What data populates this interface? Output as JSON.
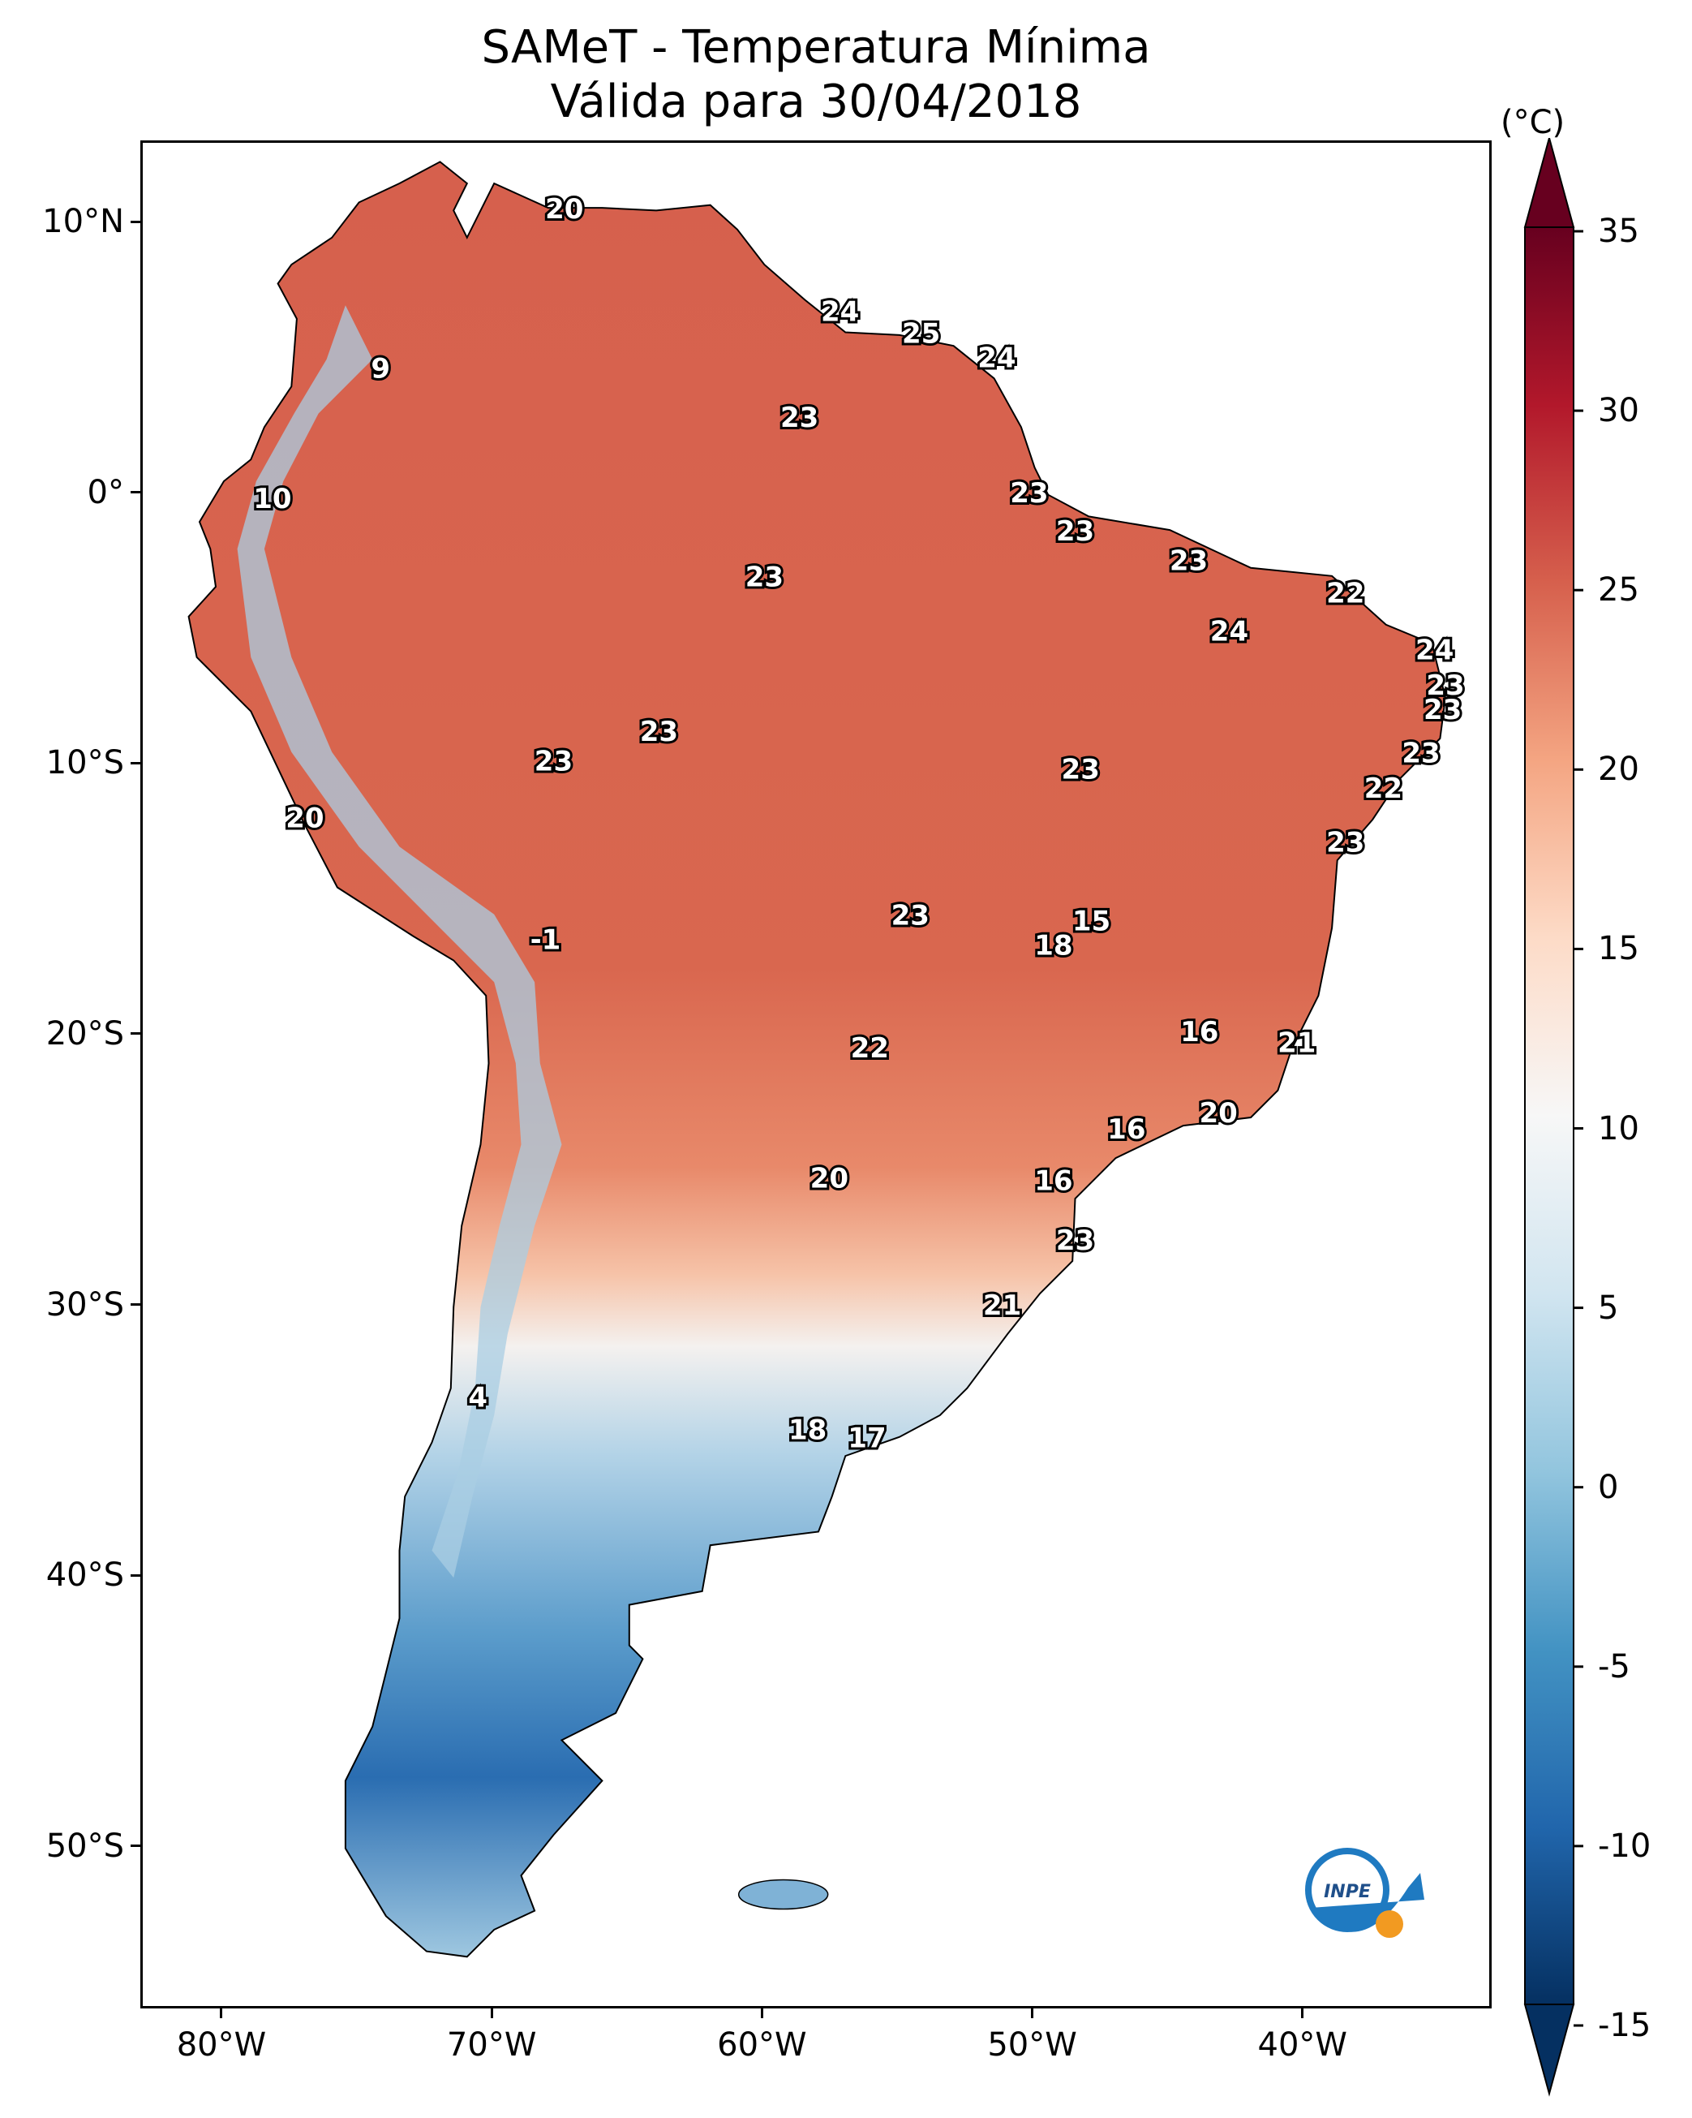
{
  "title": {
    "line1": "SAMeT - Temperatura Mínima",
    "line2": "Válida para 30/04/2018"
  },
  "map": {
    "lon_range": [
      -83,
      -33
    ],
    "lat_range": [
      -56,
      13
    ],
    "lat_ticks": [
      {
        "value": 10,
        "label": "10°N"
      },
      {
        "value": 0,
        "label": "0°"
      },
      {
        "value": -10,
        "label": "10°S"
      },
      {
        "value": -20,
        "label": "20°S"
      },
      {
        "value": -30,
        "label": "30°S"
      },
      {
        "value": -40,
        "label": "40°S"
      },
      {
        "value": -50,
        "label": "50°S"
      }
    ],
    "lon_ticks": [
      {
        "value": -80,
        "label": "80°W"
      },
      {
        "value": -70,
        "label": "70°W"
      },
      {
        "value": -60,
        "label": "60°W"
      },
      {
        "value": -50,
        "label": "50°W"
      },
      {
        "value": -40,
        "label": "40°W"
      }
    ],
    "city_labels": [
      {
        "lon": -67.4,
        "lat": 10.5,
        "text": "20"
      },
      {
        "lon": -57.2,
        "lat": 6.7,
        "text": "24"
      },
      {
        "lon": -54.2,
        "lat": 5.9,
        "text": "25"
      },
      {
        "lon": -51.4,
        "lat": 5.0,
        "text": "24"
      },
      {
        "lon": -74.2,
        "lat": 4.6,
        "text": "9"
      },
      {
        "lon": -58.7,
        "lat": 2.8,
        "text": "23"
      },
      {
        "lon": -78.2,
        "lat": -0.2,
        "text": "10"
      },
      {
        "lon": -50.2,
        "lat": 0.0,
        "text": "23"
      },
      {
        "lon": -48.5,
        "lat": -1.4,
        "text": "23"
      },
      {
        "lon": -60.0,
        "lat": -3.1,
        "text": "23"
      },
      {
        "lon": -44.3,
        "lat": -2.5,
        "text": "23"
      },
      {
        "lon": -38.5,
        "lat": -3.7,
        "text": "22"
      },
      {
        "lon": -42.8,
        "lat": -5.1,
        "text": "24"
      },
      {
        "lon": -35.2,
        "lat": -5.8,
        "text": "24"
      },
      {
        "lon": -34.8,
        "lat": -7.1,
        "text": "23"
      },
      {
        "lon": -34.9,
        "lat": -8.0,
        "text": "23"
      },
      {
        "lon": -63.9,
        "lat": -8.8,
        "text": "23"
      },
      {
        "lon": -67.8,
        "lat": -9.9,
        "text": "23"
      },
      {
        "lon": -48.3,
        "lat": -10.2,
        "text": "23"
      },
      {
        "lon": -35.7,
        "lat": -9.6,
        "text": "23"
      },
      {
        "lon": -37.1,
        "lat": -10.9,
        "text": "22"
      },
      {
        "lon": -38.5,
        "lat": -12.9,
        "text": "23"
      },
      {
        "lon": -77.0,
        "lat": -12.0,
        "text": "20"
      },
      {
        "lon": -54.6,
        "lat": -15.6,
        "text": "23"
      },
      {
        "lon": -47.9,
        "lat": -15.8,
        "text": "15"
      },
      {
        "lon": -49.3,
        "lat": -16.7,
        "text": "18"
      },
      {
        "lon": -68.1,
        "lat": -16.5,
        "text": "-1"
      },
      {
        "lon": -56.1,
        "lat": -20.5,
        "text": "22"
      },
      {
        "lon": -43.9,
        "lat": -19.9,
        "text": "16"
      },
      {
        "lon": -40.3,
        "lat": -20.3,
        "text": "21"
      },
      {
        "lon": -43.2,
        "lat": -22.9,
        "text": "20"
      },
      {
        "lon": -46.6,
        "lat": -23.5,
        "text": "16"
      },
      {
        "lon": -57.6,
        "lat": -25.3,
        "text": "20"
      },
      {
        "lon": -49.3,
        "lat": -25.4,
        "text": "16"
      },
      {
        "lon": -48.5,
        "lat": -27.6,
        "text": "23"
      },
      {
        "lon": -51.2,
        "lat": -30.0,
        "text": "21"
      },
      {
        "lon": -70.6,
        "lat": -33.4,
        "text": "4"
      },
      {
        "lon": -58.4,
        "lat": -34.6,
        "text": "18"
      },
      {
        "lon": -56.2,
        "lat": -34.9,
        "text": "17"
      }
    ],
    "logo_text": "INPE"
  },
  "colorbar": {
    "unit": "(°C)",
    "min": -15,
    "max": 35,
    "ticks": [
      35,
      30,
      25,
      20,
      15,
      10,
      5,
      0,
      -5,
      -10,
      -15
    ],
    "tick_labels": [
      "35",
      "30",
      "25",
      "20",
      "15",
      "10",
      "5",
      "0",
      "-5",
      "-10",
      "-15"
    ],
    "colors": [
      "#053061",
      "#2166ac",
      "#4393c3",
      "#92c5de",
      "#d1e5f0",
      "#f7f7f7",
      "#fddbc7",
      "#f4a582",
      "#d6604d",
      "#b2182b",
      "#67001f"
    ]
  }
}
